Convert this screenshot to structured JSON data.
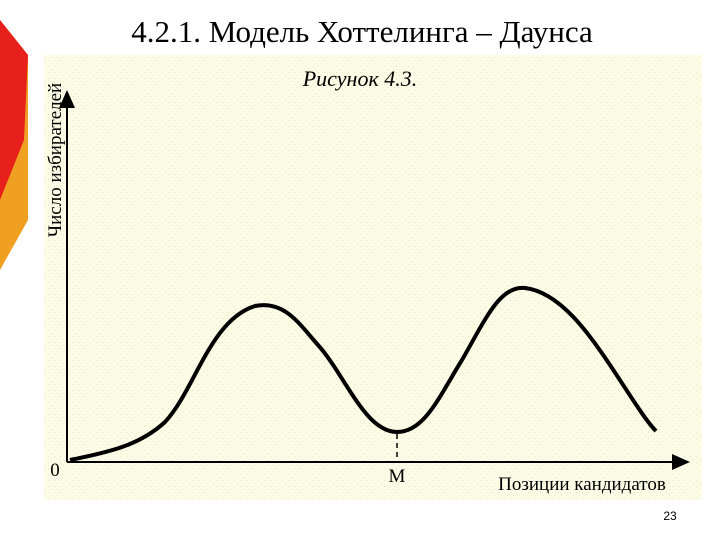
{
  "header": {
    "title": "4.2.1. Модель Хоттелинга – Даунса"
  },
  "figure": {
    "caption": "Рисунок 4.3.",
    "y_axis_label": "Число избирателей",
    "origin_label": "0",
    "median_label": "M",
    "x_axis_label": "Позиции кандидатов"
  },
  "footer": {
    "page_number": "23"
  }
}
